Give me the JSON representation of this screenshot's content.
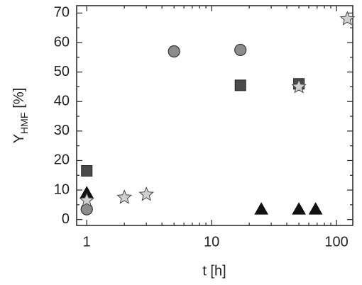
{
  "chart_data": {
    "type": "scatter",
    "xlabel": "t [h]",
    "ylabel": {
      "main": "Y",
      "sub": "HMF",
      "unit": "[%]"
    },
    "xscale": "log",
    "xlim": [
      0.83,
      135
    ],
    "xticks": [
      1,
      10,
      100
    ],
    "xminor": [
      2,
      3,
      4,
      5,
      6,
      7,
      8,
      9,
      20,
      30,
      40,
      50,
      60,
      70,
      80,
      90
    ],
    "ylim": [
      -2,
      72.5
    ],
    "yticks": [
      0,
      10,
      20,
      30,
      40,
      50,
      60,
      70
    ],
    "yminor": [
      5,
      15,
      25,
      35,
      45,
      55,
      65
    ],
    "series": [
      {
        "marker": "circle",
        "color": "#8c8c8c",
        "x": [
          1,
          5,
          17
        ],
        "values": [
          3.5,
          57,
          57.5
        ]
      },
      {
        "marker": "square",
        "color": "#4a4a4a",
        "x": [
          1,
          17,
          50
        ],
        "values": [
          16.5,
          45.5,
          46
        ]
      },
      {
        "marker": "triangle",
        "color": "#111111",
        "x": [
          1,
          25,
          50,
          68
        ],
        "values": [
          9,
          3.5,
          3.5,
          3.5
        ]
      },
      {
        "marker": "star",
        "color": "#d0d0d0",
        "x": [
          1,
          2,
          3,
          50,
          122
        ],
        "values": [
          6.5,
          7.5,
          8.5,
          45,
          68
        ]
      }
    ]
  }
}
